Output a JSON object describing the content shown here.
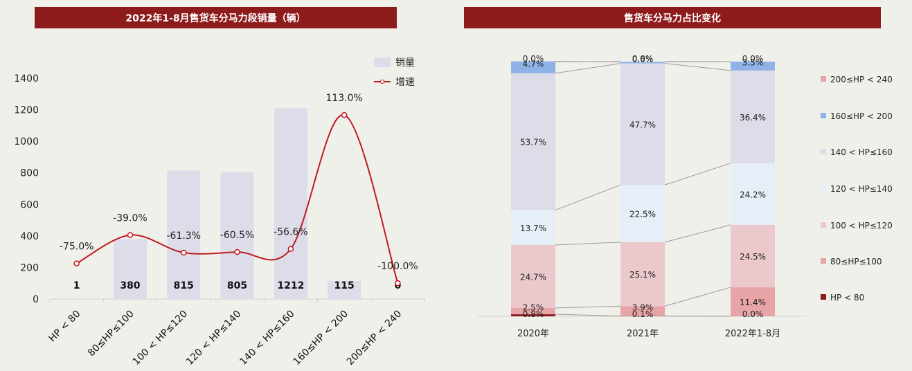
{
  "left": {
    "title": "2022年1-8月售货车分马力段销量（辆）",
    "legend": {
      "bar": "销量",
      "line": "增速"
    }
  },
  "right": {
    "title": "售货车分马力占比变化"
  },
  "colors": {
    "title_bg": "#8e1b1b",
    "bar": "#dcdde9",
    "line": "#c0181f"
  },
  "chart_data": [
    {
      "type": "bar",
      "title": "2022年1-8月售货车分马力段销量（辆）",
      "categories": [
        "HP < 80",
        "80≤HP≤100",
        "100 < HP≤120",
        "120 < HP≤140",
        "140 < HP≤160",
        "160≤HP < 200",
        "200≤HP < 240"
      ],
      "series": [
        {
          "name": "销量",
          "type": "bar",
          "values": [
            1,
            380,
            815,
            805,
            1212,
            115,
            0
          ],
          "labels": [
            "1",
            "380",
            "815",
            "805",
            "1212",
            "115",
            "0"
          ]
        },
        {
          "name": "增速",
          "type": "line",
          "values": [
            -75.0,
            -39.0,
            -61.3,
            -60.5,
            -56.6,
            113.0,
            -100.0
          ],
          "labels": [
            "-75.0%",
            "-39.0%",
            "-61.3%",
            "-60.5%",
            "-56.6%",
            "113.0%",
            "-100.0%"
          ]
        }
      ],
      "yticks": [
        "0",
        "200",
        "400",
        "600",
        "800",
        "1000",
        "1200",
        "1400"
      ],
      "ylim": [
        0,
        1400
      ]
    },
    {
      "type": "bar",
      "stacked": true,
      "title": "售货车分马力占比变化",
      "categories": [
        "2020年",
        "2021年",
        "2022年1-8月"
      ],
      "series": [
        {
          "name": "HP < 80",
          "color": "#8e1b1b",
          "values": [
            0.8,
            0.1,
            0.0
          ],
          "labels": [
            "0.8%",
            "0.1%",
            "0.0%"
          ]
        },
        {
          "name": "80≤HP≤100",
          "color": "#e8a5a7",
          "values": [
            2.5,
            3.9,
            11.4
          ],
          "labels": [
            "2.5%",
            "3.9%",
            "11.4%"
          ]
        },
        {
          "name": "100 < HP≤120",
          "color": "#ebc8cc",
          "values": [
            24.7,
            25.1,
            24.5
          ],
          "labels": [
            "24.7%",
            "25.1%",
            "24.5%"
          ]
        },
        {
          "name": "120 < HP≤140",
          "color": "#e6eef8",
          "values": [
            13.7,
            22.5,
            24.2
          ],
          "labels": [
            "13.7%",
            "22.5%",
            "24.2%"
          ]
        },
        {
          "name": "140 < HP≤160",
          "color": "#dcdde9",
          "values": [
            53.7,
            47.7,
            36.4
          ],
          "labels": [
            "53.7%",
            "47.7%",
            "36.4%"
          ]
        },
        {
          "name": "160≤HP < 200",
          "color": "#8fb3e8",
          "values": [
            4.7,
            0.6,
            3.5
          ],
          "labels": [
            "4.7%",
            "0.6%",
            "3.5%"
          ]
        },
        {
          "name": "200≤HP < 240",
          "color": "#e8a5a7",
          "values": [
            0.0,
            0.0,
            0.0
          ],
          "labels": [
            "0.0%",
            "0.0%",
            "0.0%"
          ]
        }
      ],
      "ylim": [
        0,
        100
      ]
    }
  ]
}
